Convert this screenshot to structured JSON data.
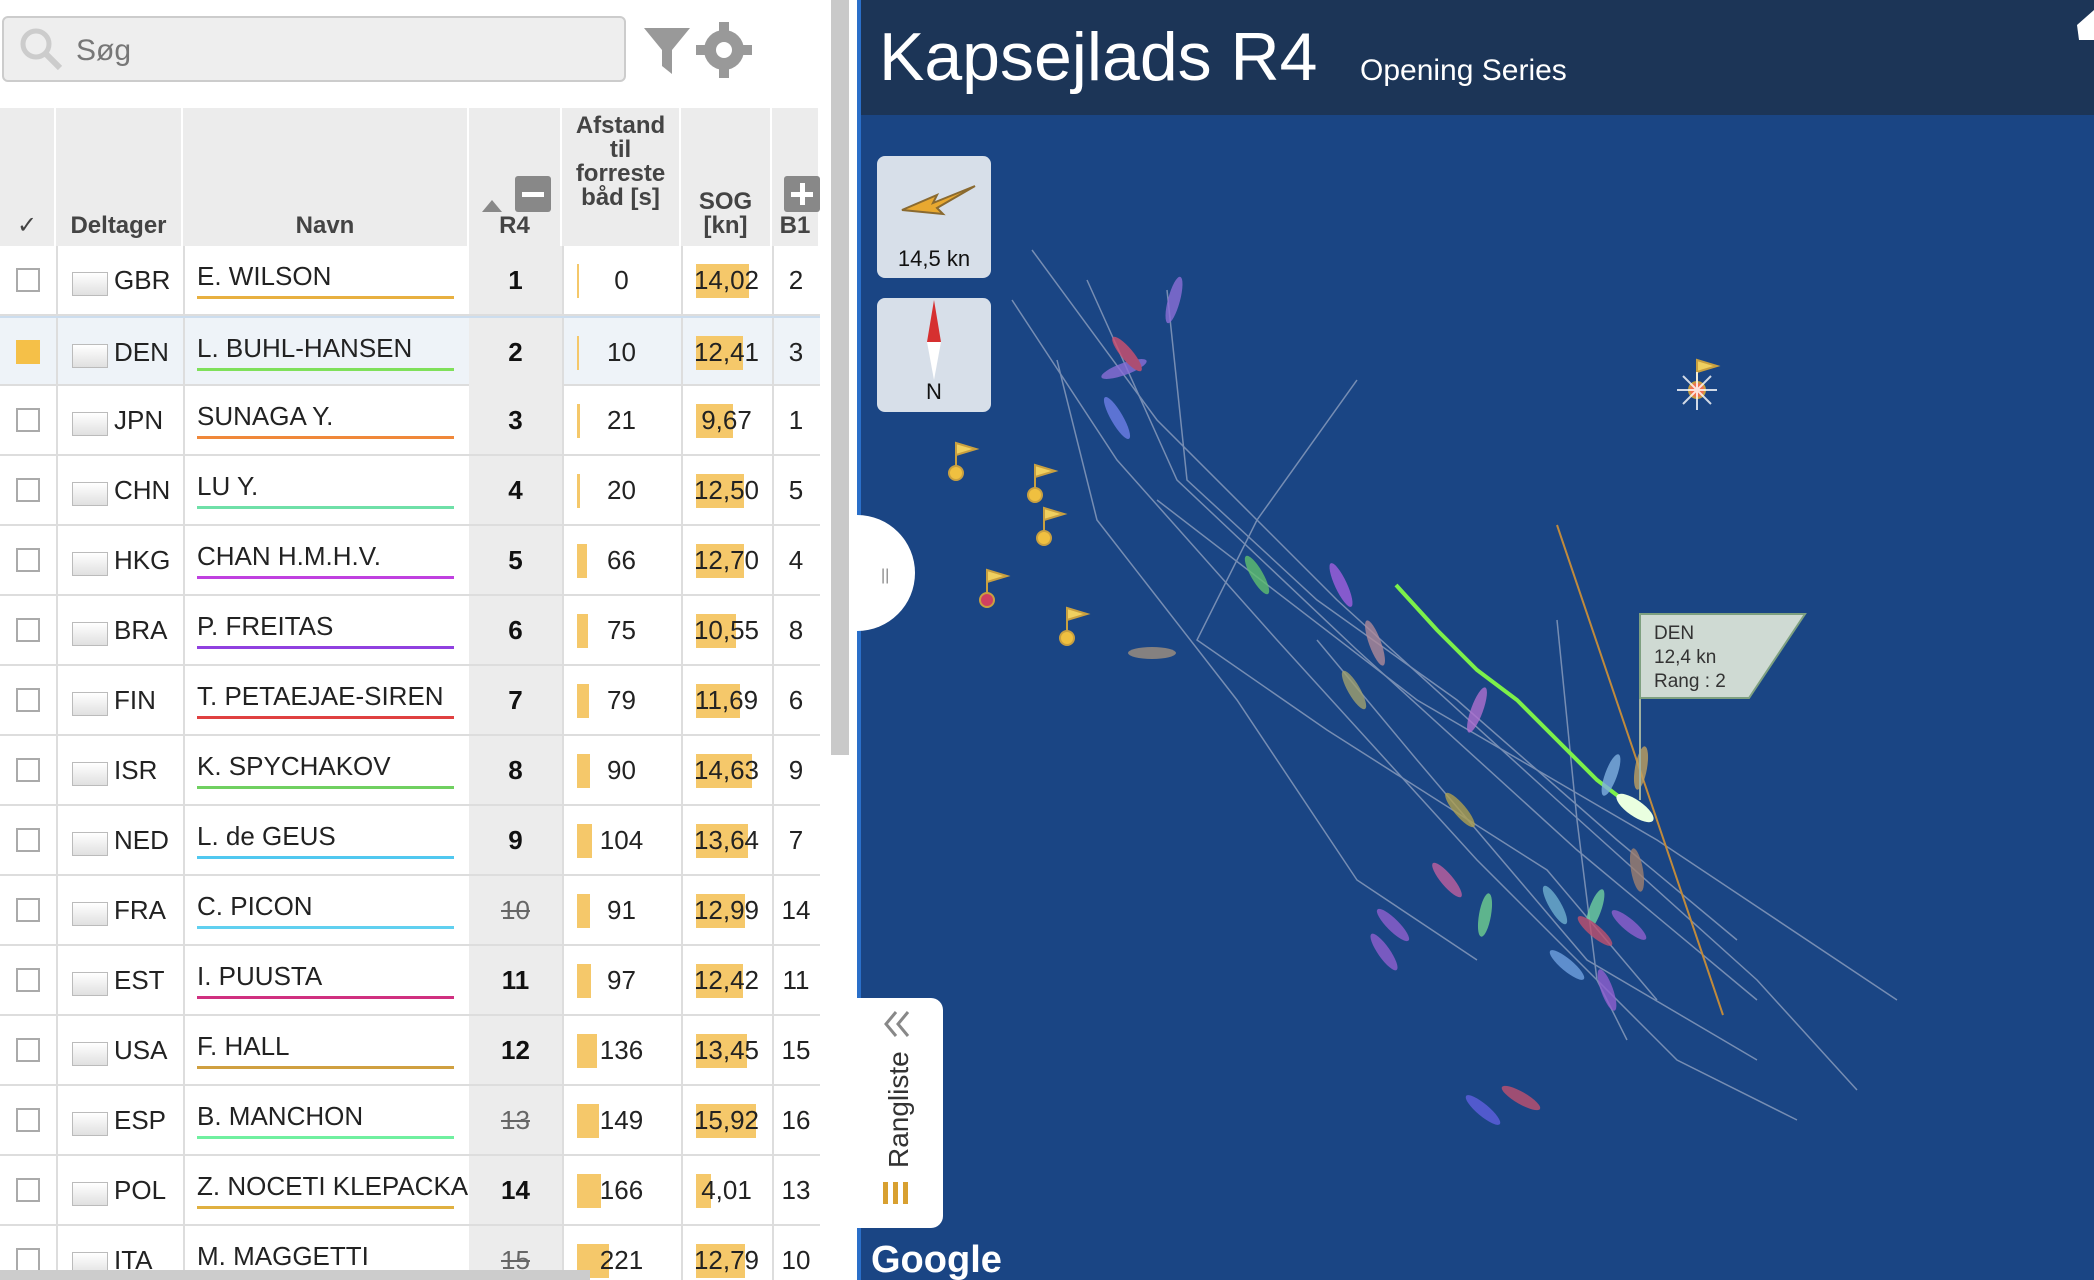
{
  "search": {
    "placeholder": "Søg"
  },
  "table": {
    "headers": {
      "check": "✓",
      "participant": "Deltager",
      "name": "Navn",
      "race": "R4",
      "distance": "Afstand til forreste båd [s]",
      "sog": "SOG [kn]",
      "next": "B1"
    },
    "rows": [
      {
        "checked": false,
        "country": "GBR",
        "name": "E. WILSON",
        "color": "#e8b040",
        "rank": 1,
        "discarded": false,
        "distance": 0,
        "sog": 14.02,
        "sog_label": "14,02",
        "b1": 2
      },
      {
        "checked": true,
        "country": "DEN",
        "name": "L. BUHL-HANSEN",
        "color": "#7fe05a",
        "rank": 2,
        "discarded": false,
        "distance": 10,
        "sog": 12.41,
        "sog_label": "12,41",
        "b1": 3
      },
      {
        "checked": false,
        "country": "JPN",
        "name": "SUNAGA Y.",
        "color": "#f0883a",
        "rank": 3,
        "discarded": false,
        "distance": 21,
        "sog": 9.67,
        "sog_label": "9,67",
        "b1": 1
      },
      {
        "checked": false,
        "country": "CHN",
        "name": "LU Y.",
        "color": "#6fe0a8",
        "rank": 4,
        "discarded": false,
        "distance": 20,
        "sog": 12.5,
        "sog_label": "12,50",
        "b1": 5
      },
      {
        "checked": false,
        "country": "HKG",
        "name": "CHAN H.M.H.V.",
        "color": "#c040e0",
        "rank": 5,
        "discarded": false,
        "distance": 66,
        "sog": 12.7,
        "sog_label": "12,70",
        "b1": 4
      },
      {
        "checked": false,
        "country": "BRA",
        "name": "P. FREITAS",
        "color": "#9040e0",
        "rank": 6,
        "discarded": false,
        "distance": 75,
        "sog": 10.55,
        "sog_label": "10,55",
        "b1": 8
      },
      {
        "checked": false,
        "country": "FIN",
        "name": "T. PETAEJAE-SIREN",
        "color": "#e04040",
        "rank": 7,
        "discarded": false,
        "distance": 79,
        "sog": 11.69,
        "sog_label": "11,69",
        "b1": 6
      },
      {
        "checked": false,
        "country": "ISR",
        "name": "K. SPYCHAKOV",
        "color": "#70d060",
        "rank": 8,
        "discarded": false,
        "distance": 90,
        "sog": 14.63,
        "sog_label": "14,63",
        "b1": 9
      },
      {
        "checked": false,
        "country": "NED",
        "name": "L. de GEUS",
        "color": "#50c8f0",
        "rank": 9,
        "discarded": false,
        "distance": 104,
        "sog": 13.64,
        "sog_label": "13,64",
        "b1": 7
      },
      {
        "checked": false,
        "country": "FRA",
        "name": "C. PICON",
        "color": "#60d0f0",
        "rank": 10,
        "discarded": true,
        "distance": 91,
        "sog": 12.99,
        "sog_label": "12,99",
        "b1": 14
      },
      {
        "checked": false,
        "country": "EST",
        "name": "I. PUUSTA",
        "color": "#d03080",
        "rank": 11,
        "discarded": false,
        "distance": 97,
        "sog": 12.42,
        "sog_label": "12,42",
        "b1": 11
      },
      {
        "checked": false,
        "country": "USA",
        "name": "F. HALL",
        "color": "#d0a040",
        "rank": 12,
        "discarded": false,
        "distance": 136,
        "sog": 13.45,
        "sog_label": "13,45",
        "b1": 15
      },
      {
        "checked": false,
        "country": "ESP",
        "name": "B. MANCHON",
        "color": "#70f0a0",
        "rank": 13,
        "discarded": true,
        "distance": 149,
        "sog": 15.92,
        "sog_label": "15,92",
        "b1": 16
      },
      {
        "checked": false,
        "country": "POL",
        "name": "Z. NOCETI KLEPACKA",
        "color": "#e0b040",
        "rank": 14,
        "discarded": false,
        "distance": 166,
        "sog": 4.01,
        "sog_label": "4,01",
        "b1": 13
      },
      {
        "checked": false,
        "country": "ITA",
        "name": "M. MAGGETTI",
        "color": "#e0b040",
        "rank": 15,
        "discarded": true,
        "distance": 221,
        "sog": 12.79,
        "sog_label": "12,79",
        "b1": 10
      }
    ]
  },
  "map": {
    "title": "Kapsejlads R4",
    "subtitle": "Opening Series",
    "wind": "14,5 kn",
    "compass": "N",
    "tooltip": {
      "country": "DEN",
      "speed": "12,4 kn",
      "rank": "Rang : 2"
    },
    "tab": "Rangliste",
    "provider": "Google"
  }
}
